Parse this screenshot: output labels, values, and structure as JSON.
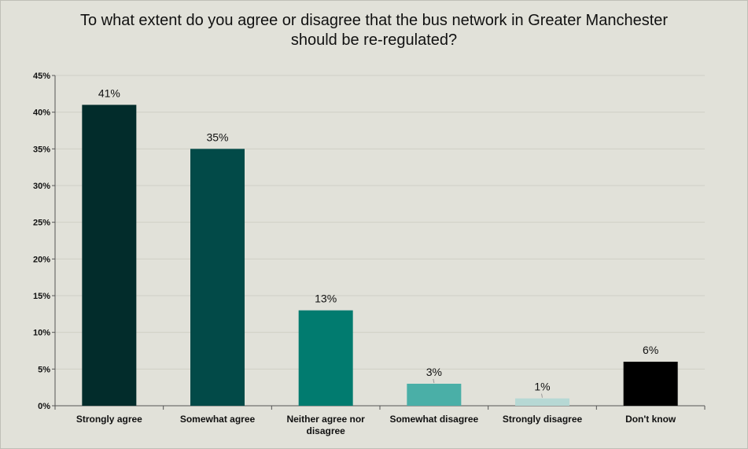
{
  "chart_data": {
    "type": "bar",
    "title": "To what extent do you agree or disagree that the bus network in Greater Manchester should be re-regulated?",
    "categories": [
      [
        "Strongly agree"
      ],
      [
        "Somewhat agree"
      ],
      [
        "Neither agree nor",
        "disagree"
      ],
      [
        "Somewhat disagree"
      ],
      [
        "Strongly disagree"
      ],
      [
        "Don't know"
      ]
    ],
    "values": [
      41,
      35,
      13,
      3,
      1,
      6
    ],
    "data_labels": [
      "41%",
      "35%",
      "13%",
      "3%",
      "1%",
      "6%"
    ],
    "bar_colors": [
      "#022c2b",
      "#024a48",
      "#017b6f",
      "#4aafa7",
      "#b6d8d4",
      "#000000"
    ],
    "ylim": [
      0,
      45
    ],
    "yticks": [
      0,
      5,
      10,
      15,
      20,
      25,
      30,
      35,
      40,
      45
    ],
    "ytick_labels": [
      "0%",
      "5%",
      "10%",
      "15%",
      "20%",
      "25%",
      "30%",
      "35%",
      "40%",
      "45%"
    ],
    "grid": true,
    "legend": "none"
  }
}
